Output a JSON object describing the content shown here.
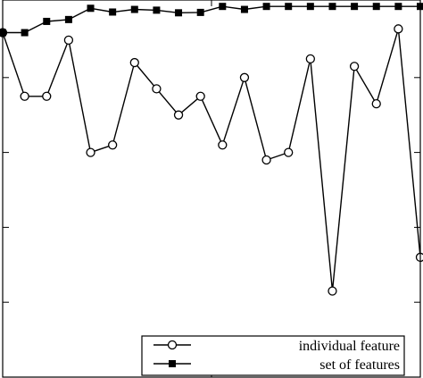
{
  "chart_data": {
    "type": "line",
    "title": "",
    "xlabel": "",
    "ylabel": "",
    "x": [
      1,
      2,
      3,
      4,
      5,
      6,
      7,
      8,
      9,
      10,
      11,
      12,
      13,
      14,
      15,
      16,
      17,
      18,
      19,
      20
    ],
    "xlim": [
      1,
      20
    ],
    "ylim": [
      0,
      1
    ],
    "grid": false,
    "legend_position": "bottom-right",
    "series": [
      {
        "name": "individual feature",
        "marker": "open-circle",
        "color": "#000000",
        "values": [
          0.92,
          0.75,
          0.75,
          0.9,
          0.6,
          0.62,
          0.84,
          0.77,
          0.7,
          0.75,
          0.62,
          0.8,
          0.58,
          0.6,
          0.85,
          0.23,
          0.83,
          0.73,
          0.93,
          0.32
        ]
      },
      {
        "name": "set of features",
        "marker": "filled-square",
        "color": "#000000",
        "values": [
          0.92,
          0.92,
          0.95,
          0.955,
          0.985,
          0.975,
          0.982,
          0.98,
          0.973,
          0.974,
          0.99,
          0.982,
          0.99,
          0.99,
          0.99,
          0.99,
          0.99,
          0.99,
          0.99,
          0.99
        ]
      }
    ]
  }
}
